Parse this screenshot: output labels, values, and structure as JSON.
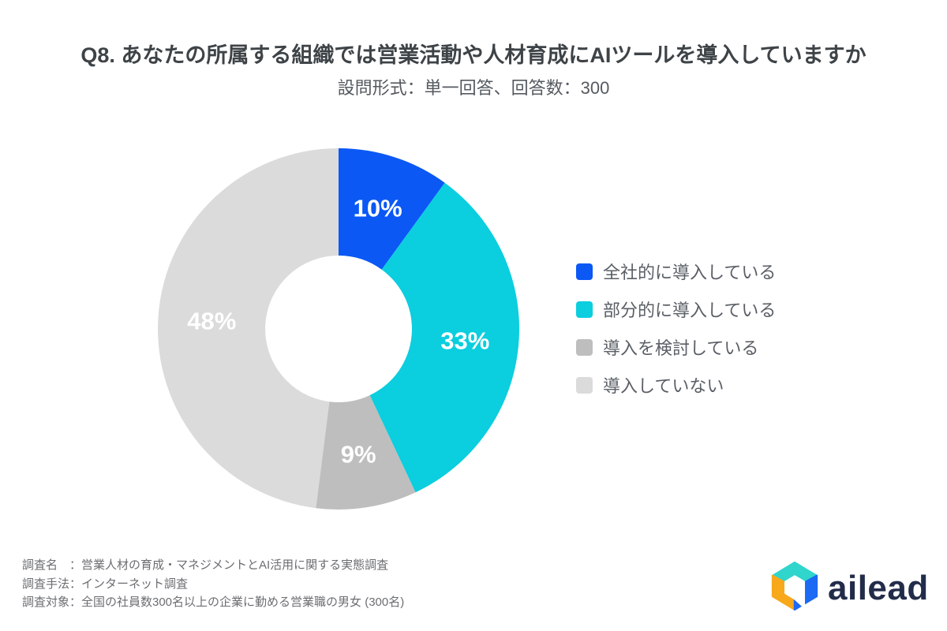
{
  "header": {
    "title": "Q8. あなたの所属する組織では営業活動や人材育成にAIツールを導入していますか",
    "subtitle": "設問形式：単一回答、回答数：300"
  },
  "chart_data": {
    "type": "pie",
    "subtype": "donut",
    "title": "Q8. あなたの所属する組織では営業活動や人材育成にAIツールを導入していますか",
    "total_responses": 300,
    "start_angle_deg": 0,
    "direction": "clockwise",
    "donut_hole_ratio": 0.406,
    "legend_position": "right",
    "value_label_color": "#ffffff",
    "segments": [
      {
        "label": "全社的に導入している",
        "value_pct": 10,
        "display": "10%",
        "color": "#0b58f5"
      },
      {
        "label": "部分的に導入している",
        "value_pct": 33,
        "display": "33%",
        "color": "#0bcedf"
      },
      {
        "label": "導入を検討している",
        "value_pct": 9,
        "display": "9%",
        "color": "#bebebe"
      },
      {
        "label": "導入していない",
        "value_pct": 48,
        "display": "48%",
        "color": "#dbdbdb"
      }
    ]
  },
  "footer": {
    "lines": [
      "調査名　：営業人材の育成・マネジメントとAI活用に関する実態調査",
      "調査手法：インターネット調査",
      "調査対象：全国の社員数300名以上の企業に勤める営業職の男女 (300名)"
    ]
  },
  "logo": {
    "text": "ailead",
    "wordmark_color": "#222c4a",
    "icon_colors": {
      "top": "#30d5cc",
      "left": "#f7a81b",
      "right": "#1c69f4"
    }
  }
}
